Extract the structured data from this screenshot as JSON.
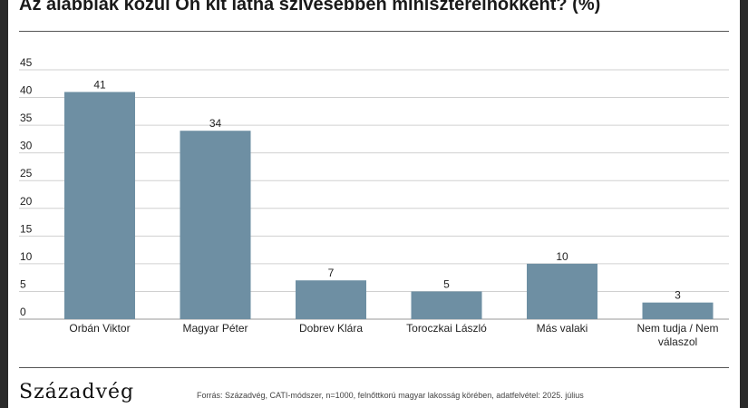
{
  "title": "Az alábbiak közül Ön kit látna szívesebben miniszterelnökként? (%)",
  "brand": "Századvég",
  "source": "Forrás: Századvég, CATI-módszer, n=1000, felnőttkorú magyar lakosság körében, adatfelvétel: 2025. július",
  "colors": {
    "bar": "#6e8fa3",
    "grid": "#d0d0d0"
  },
  "chart_data": {
    "type": "bar",
    "title": "Az alábbiak közül Ön kit látna szívesebben miniszterelnökként? (%)",
    "categories": [
      [
        "Orbán Viktor"
      ],
      [
        "Magyar Péter"
      ],
      [
        "Dobrev Klára"
      ],
      [
        "Toroczkai László"
      ],
      [
        "Más valaki"
      ],
      [
        "Nem tudja / Nem",
        "válaszol"
      ]
    ],
    "values": [
      41,
      34,
      7,
      5,
      10,
      3
    ],
    "yticks": [
      0,
      5,
      10,
      15,
      20,
      25,
      30,
      35,
      40,
      45
    ],
    "ylim": [
      0,
      45
    ],
    "grid": true,
    "legend": "none"
  }
}
